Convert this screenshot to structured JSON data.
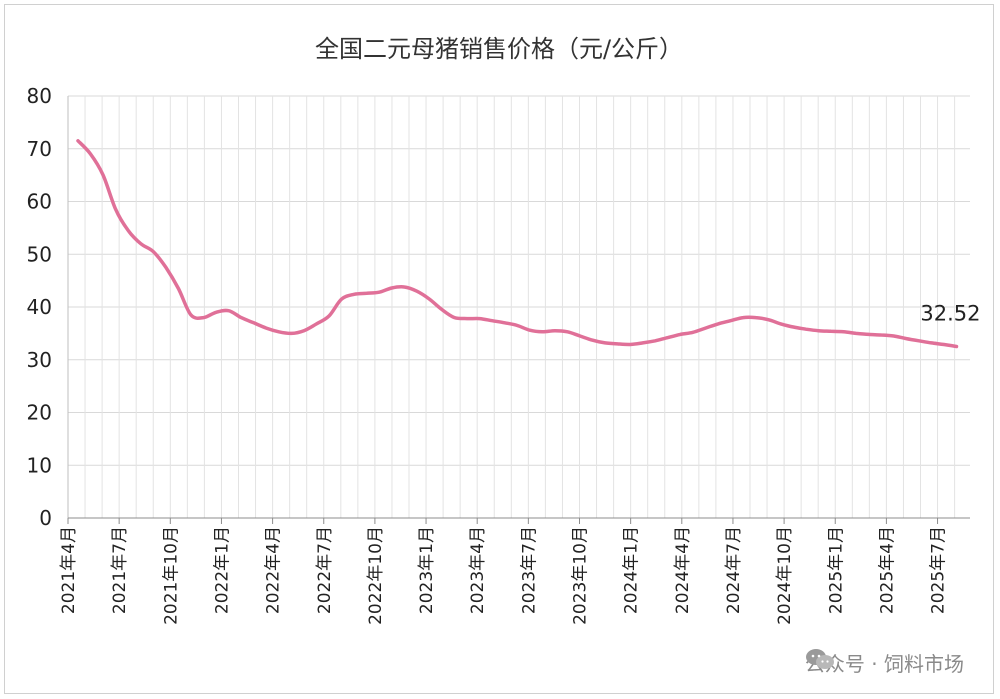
{
  "chart_data": {
    "type": "line",
    "title": "全国二元母猪销售价格（元/公斤）",
    "xlabel": "",
    "ylabel": "",
    "ylim": [
      0,
      80
    ],
    "yticks": [
      0,
      10,
      20,
      30,
      40,
      50,
      60,
      70,
      80
    ],
    "grid": true,
    "x_tick_labels": [
      "2021年4月",
      "2021年7月",
      "2021年10月",
      "2022年1月",
      "2022年4月",
      "2022年7月",
      "2022年10月",
      "2023年1月",
      "2023年4月",
      "2023年7月",
      "2023年10月",
      "2024年1月",
      "2024年4月",
      "2024年7月",
      "2024年10月",
      "2025年1月",
      "2025年4月",
      "2025年7月"
    ],
    "series": [
      {
        "color": "#e07098",
        "values": [
          71.5,
          69.0,
          65.0,
          58.5,
          54.5,
          52.0,
          50.5,
          47.5,
          43.5,
          38.5,
          38.0,
          39.0,
          39.3,
          38.0,
          37.0,
          36.0,
          35.3,
          35.0,
          35.5,
          36.8,
          38.3,
          41.5,
          42.4,
          42.6,
          42.8,
          43.6,
          43.8,
          43.0,
          41.5,
          39.5,
          38.0,
          37.8,
          37.8,
          37.4,
          37.0,
          36.5,
          35.6,
          35.3,
          35.5,
          35.3,
          34.5,
          33.7,
          33.2,
          33.0,
          32.9,
          33.2,
          33.6,
          34.2,
          34.8,
          35.2,
          36.0,
          36.8,
          37.4,
          38.0,
          38.0,
          37.6,
          36.8,
          36.2,
          35.8,
          35.5,
          35.4,
          35.3,
          35.0,
          34.8,
          34.7,
          34.5,
          34.0,
          33.6,
          33.2,
          32.9,
          32.52
        ],
        "end_label": "32.52"
      }
    ]
  },
  "watermark": {
    "text": "公众号 · 饲料市场",
    "icon": "wechat-icon"
  }
}
